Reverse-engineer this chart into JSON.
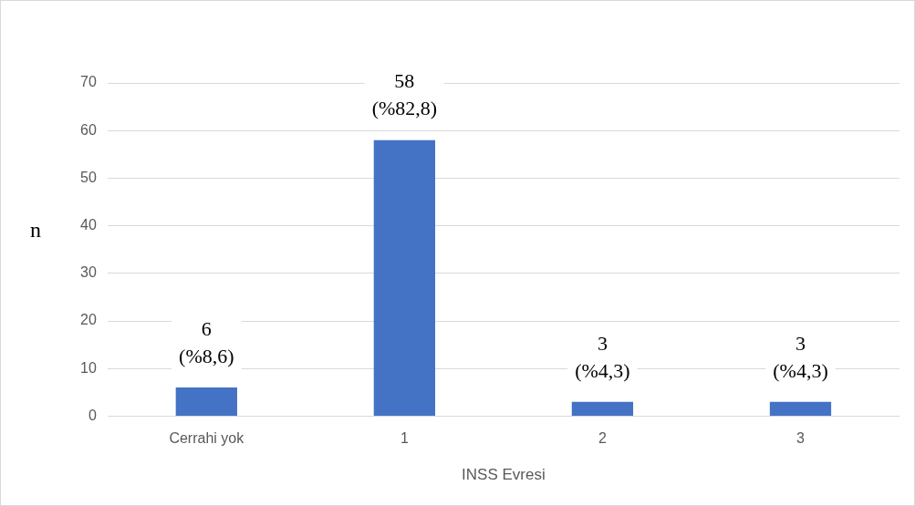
{
  "chart_data": {
    "type": "bar",
    "categories": [
      "Cerrahi yok",
      "1",
      "2",
      "3"
    ],
    "values": [
      6,
      58,
      3,
      3
    ],
    "color": "#4472c4",
    "value_labels": [
      "6\n(%8,6)",
      "58\n(%82,8)",
      "3\n(%4,3)",
      "3\n(%4,3)"
    ],
    "xlabel": "INSS Evresi",
    "ylabel": "n",
    "ylim": [
      0,
      70
    ],
    "yticks": [
      0,
      10,
      20,
      30,
      40,
      50,
      60,
      70
    ],
    "grid": "y",
    "legend": false
  }
}
